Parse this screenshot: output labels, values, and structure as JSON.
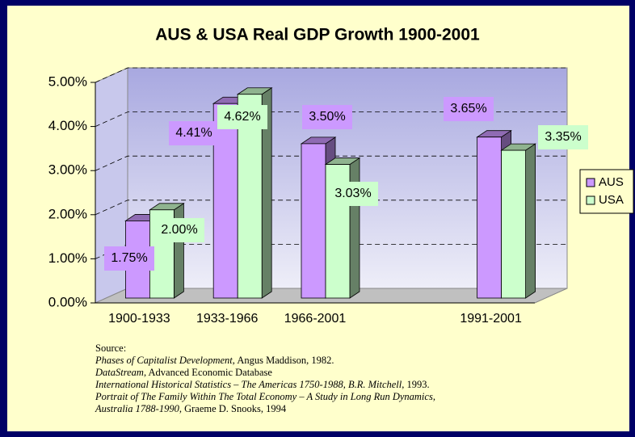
{
  "chart_data": {
    "type": "bar3d",
    "title": "AUS & USA Real GDP Growth 1900-2001",
    "categories": [
      "1900-1933",
      "1933-1966",
      "1966-2001",
      null,
      "1991-2001"
    ],
    "series": [
      {
        "name": "AUS",
        "color": "#cc99ff",
        "values": [
          1.75,
          4.41,
          3.5,
          null,
          3.65
        ],
        "value_labels": [
          "1.75%",
          "4.41%",
          "3.50%",
          null,
          "3.65%"
        ]
      },
      {
        "name": "USA",
        "color": "#ccffcc",
        "values": [
          2.0,
          4.62,
          3.03,
          null,
          3.35
        ],
        "value_labels": [
          "2.00%",
          "4.62%",
          "3.03%",
          null,
          "3.35%"
        ]
      }
    ],
    "ylim": [
      0,
      5
    ],
    "yticks": [
      {
        "value": 0,
        "label": "0.00%"
      },
      {
        "value": 1,
        "label": "1.00%"
      },
      {
        "value": 2,
        "label": "2.00%"
      },
      {
        "value": 3,
        "label": "3.00%"
      },
      {
        "value": 4,
        "label": "4.00%"
      },
      {
        "value": 5,
        "label": "5.00%"
      }
    ],
    "grid": true,
    "legend": "right"
  },
  "source": {
    "lines": [
      [
        {
          "text": "Source:",
          "italic": false
        }
      ],
      [
        {
          "text": "Phases of Capitalist Development",
          "italic": true
        },
        {
          "text": ", Angus Maddison, 1982.",
          "italic": false
        }
      ],
      [
        {
          "text": "DataStream",
          "italic": true
        },
        {
          "text": ", Advanced Economic Database",
          "italic": false
        }
      ],
      [
        {
          "text": "International Historical Statistics – The Americas 1750-1988, B.R. Mitchell",
          "italic": true
        },
        {
          "text": ", 1993.",
          "italic": false
        }
      ],
      [
        {
          "text": "Portrait of The Family Within The Total Economy – A Study in Long Run Dynamics,",
          "italic": true
        }
      ],
      [
        {
          "text": "Australia 1788-1990",
          "italic": true
        },
        {
          "text": ", Graeme D. Snooks, 1994",
          "italic": false
        }
      ]
    ]
  }
}
